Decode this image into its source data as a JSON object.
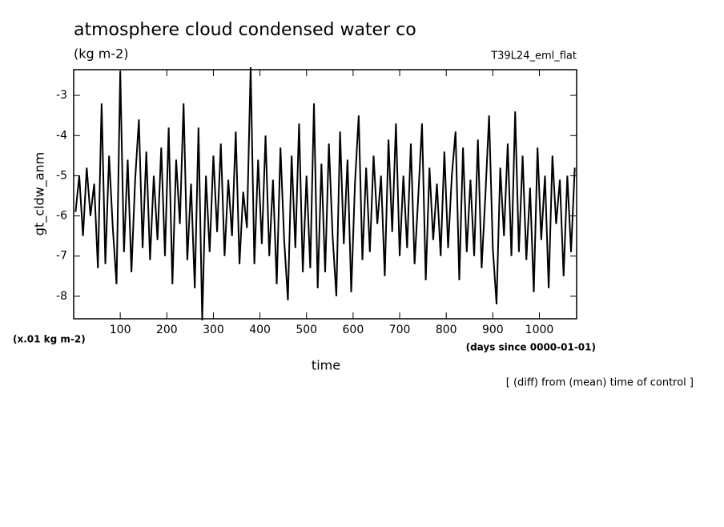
{
  "chart_data": {
    "type": "line",
    "title": "atmosphere cloud condensed water co",
    "subtitle": "(kg m-2)",
    "run_label": "T39L24_eml_flat",
    "ylabel": "gt_cldw_anm",
    "yunit": "(x.01 kg m-2)",
    "xunit": "(days since 0000-01-01)",
    "xlabel": "time",
    "note": "[ (diff) from (mean) time of control ]",
    "xlim": [
      0,
      1080
    ],
    "ylim": [
      -8.56,
      -2.36
    ],
    "xticks": [
      100,
      200,
      300,
      400,
      500,
      600,
      700,
      800,
      900,
      1000
    ],
    "yticks": [
      -8,
      -7,
      -6,
      -5,
      -4,
      -3
    ],
    "series": [
      {
        "color": "#000000",
        "x": [
          4,
          12,
          20,
          28,
          36,
          44,
          52,
          60,
          68,
          76,
          84,
          92,
          100,
          108,
          116,
          124,
          132,
          140,
          148,
          156,
          164,
          172,
          180,
          188,
          196,
          204,
          212,
          220,
          228,
          236,
          244,
          252,
          260,
          268,
          276,
          284,
          292,
          300,
          308,
          316,
          324,
          332,
          340,
          348,
          356,
          364,
          372,
          380,
          388,
          396,
          404,
          412,
          420,
          428,
          436,
          444,
          452,
          460,
          468,
          476,
          484,
          492,
          500,
          508,
          516,
          524,
          532,
          540,
          548,
          556,
          564,
          572,
          580,
          588,
          596,
          604,
          612,
          620,
          628,
          636,
          644,
          652,
          660,
          668,
          676,
          684,
          692,
          700,
          708,
          716,
          724,
          732,
          740,
          748,
          756,
          764,
          772,
          780,
          788,
          796,
          804,
          812,
          820,
          828,
          836,
          844,
          852,
          860,
          868,
          876,
          884,
          892,
          900,
          908,
          916,
          924,
          932,
          940,
          948,
          956,
          964,
          972,
          980,
          988,
          996,
          1004,
          1012,
          1020,
          1028,
          1036,
          1044,
          1052,
          1060,
          1068,
          1076
        ],
        "values": [
          -5.9,
          -5.0,
          -6.5,
          -4.8,
          -6.0,
          -5.2,
          -7.3,
          -3.2,
          -7.2,
          -4.5,
          -6.3,
          -7.7,
          -2.4,
          -6.9,
          -4.6,
          -7.4,
          -5.1,
          -3.6,
          -6.8,
          -4.4,
          -7.1,
          -5.0,
          -6.6,
          -4.3,
          -7.0,
          -3.8,
          -7.7,
          -4.6,
          -6.2,
          -3.2,
          -7.1,
          -5.2,
          -7.8,
          -3.8,
          -8.6,
          -5.0,
          -6.9,
          -4.5,
          -6.4,
          -4.2,
          -7.0,
          -5.1,
          -6.5,
          -3.9,
          -7.2,
          -5.4,
          -6.3,
          -2.3,
          -7.2,
          -4.6,
          -6.7,
          -4.0,
          -7.0,
          -5.1,
          -7.7,
          -4.3,
          -6.6,
          -8.1,
          -4.5,
          -6.8,
          -3.7,
          -7.4,
          -5.0,
          -7.3,
          -3.2,
          -7.8,
          -4.7,
          -7.4,
          -4.2,
          -6.5,
          -8.0,
          -3.9,
          -6.7,
          -4.6,
          -7.9,
          -5.2,
          -3.5,
          -7.1,
          -4.8,
          -6.9,
          -4.5,
          -6.2,
          -5.0,
          -7.5,
          -4.1,
          -6.4,
          -3.7,
          -7.0,
          -5.0,
          -6.8,
          -4.2,
          -7.2,
          -5.5,
          -3.7,
          -7.6,
          -4.8,
          -6.6,
          -5.2,
          -7.0,
          -4.4,
          -6.8,
          -5.0,
          -3.9,
          -7.6,
          -4.3,
          -6.9,
          -5.1,
          -7.0,
          -4.1,
          -7.3,
          -5.5,
          -3.5,
          -6.8,
          -8.2,
          -4.8,
          -6.5,
          -4.2,
          -7.0,
          -3.4,
          -6.9,
          -4.5,
          -7.1,
          -5.3,
          -7.9,
          -4.3,
          -6.6,
          -5.0,
          -7.8,
          -4.5,
          -6.2,
          -5.1,
          -7.5,
          -5.0,
          -6.9,
          -4.8
        ]
      }
    ]
  }
}
